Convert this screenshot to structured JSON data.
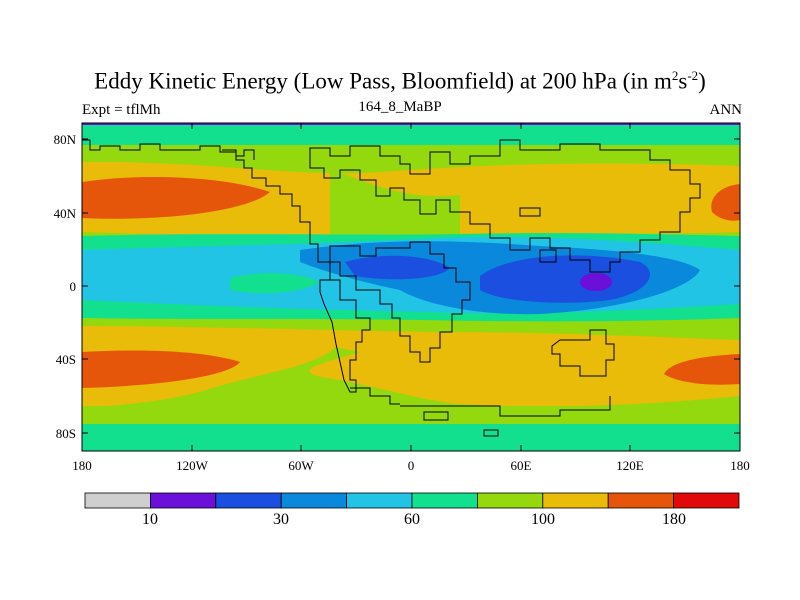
{
  "title": {
    "main": "Eddy Kinetic Energy (Low Pass, Bloomfield) at 200 hPa (in m",
    "sup1": "2",
    "mid": "s",
    "sup2": "-2",
    "end": ")"
  },
  "subtitle": {
    "left": "Expt = tflMh",
    "center": "164_8_MaBP",
    "right": "ANN"
  },
  "axes": {
    "x_ticks": [
      "180",
      "120W",
      "60W",
      "0",
      "60E",
      "120E",
      "180"
    ],
    "y_ticks": [
      "80N",
      "40N",
      "0",
      "40S",
      "80S"
    ]
  },
  "colorbar": {
    "colors": [
      "#cfcfcf",
      "#6a10d8",
      "#1a4fe0",
      "#0a88dc",
      "#22c4e6",
      "#12e08e",
      "#94d80e",
      "#e8bc08",
      "#e6560a",
      "#e00a0a"
    ],
    "labels": [
      "10",
      "30",
      "60",
      "100",
      "180"
    ]
  },
  "legend_colors": {
    "lowest": "#cfcfcf",
    "purple": "#6a10d8",
    "blue": "#1a4fe0",
    "mid_blue": "#0a88dc",
    "cyan": "#22c4e6",
    "green": "#12e08e",
    "yellow_green": "#94d80e",
    "gold": "#e8bc08",
    "orange": "#e6560a",
    "red": "#e00a0a"
  }
}
